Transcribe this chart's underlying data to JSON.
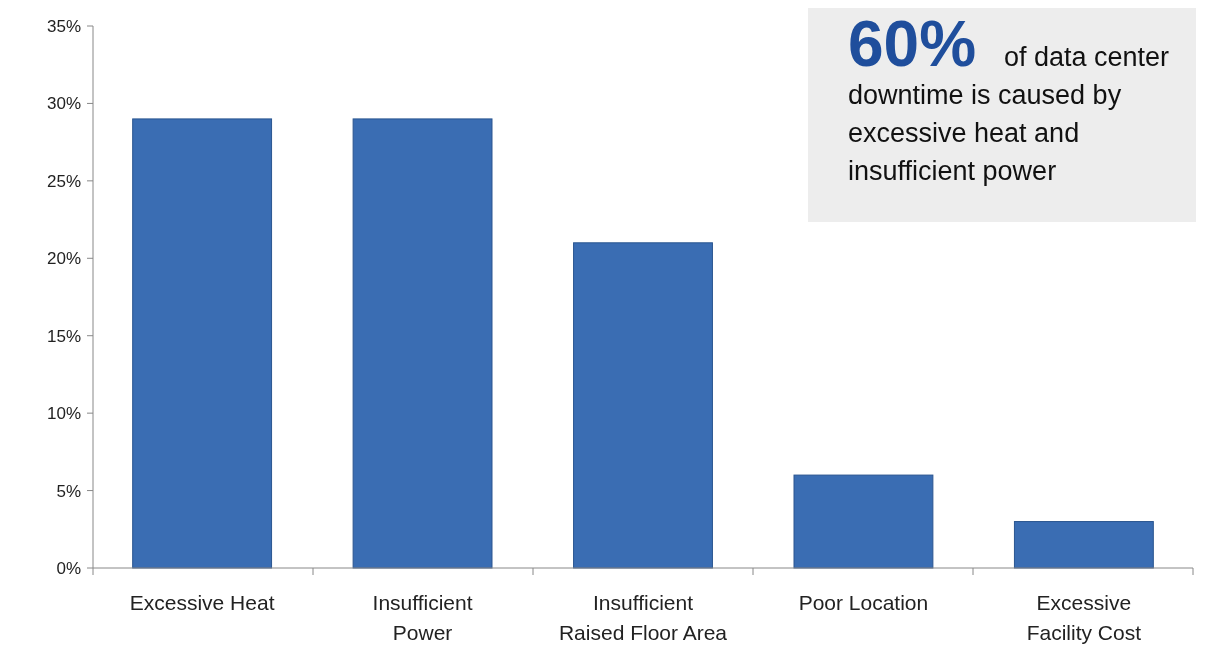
{
  "chart_data": {
    "type": "bar",
    "categories": [
      "Excessive Heat",
      "Insufficient Power",
      "Insufficient Raised Floor Area",
      "Poor Location",
      "Excessive Facility Cost"
    ],
    "values": [
      29,
      29,
      21,
      6,
      3
    ],
    "color": "#3a6db3",
    "ylim": [
      0,
      35
    ],
    "yticks": [
      {
        "value": 0,
        "label": "0%"
      },
      {
        "value": 5,
        "label": "5%"
      },
      {
        "value": 10,
        "label": "10%"
      },
      {
        "value": 15,
        "label": "15%"
      },
      {
        "value": 20,
        "label": "20%"
      },
      {
        "value": 25,
        "label": "25%"
      },
      {
        "value": 30,
        "label": "30%"
      },
      {
        "value": 35,
        "label": "35%"
      }
    ],
    "grid": false,
    "annotations": [
      "60% of data center downtime is caused by excessive heat and insufficient power"
    ]
  }
}
